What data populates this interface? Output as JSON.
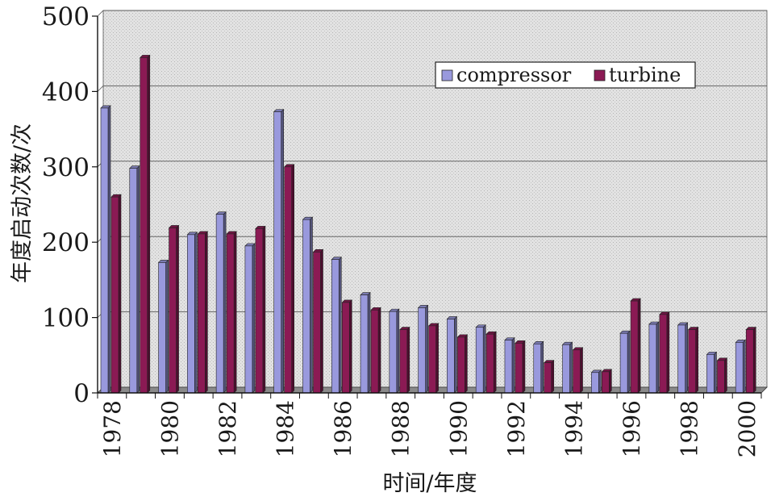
{
  "chart_data": {
    "type": "bar",
    "xlabel": "时间/年度",
    "ylabel": "年度启动次数/次",
    "ylim": [
      0,
      500
    ],
    "yticks": [
      0,
      100,
      200,
      300,
      400,
      500
    ],
    "grid": true,
    "legend_position": "top-right",
    "categories": [
      "1978",
      "1979",
      "1980",
      "1981",
      "1982",
      "1983",
      "1984",
      "1985",
      "1986",
      "1987",
      "1988",
      "1989",
      "1990",
      "1991",
      "1992",
      "1993",
      "1994",
      "1995",
      "1996",
      "1997",
      "1998",
      "1999",
      "2000"
    ],
    "xtick_labels": [
      "1978",
      "1980",
      "1982",
      "1984",
      "1986",
      "1988",
      "1990",
      "1992",
      "1994",
      "1996",
      "1998",
      "2000"
    ],
    "series": [
      {
        "name": "compressor",
        "color": "#9999dd",
        "values": [
          378,
          298,
          173,
          210,
          237,
          195,
          373,
          230,
          177,
          130,
          108,
          113,
          98,
          87,
          70,
          65,
          64,
          27,
          79,
          91,
          90,
          51,
          67
        ]
      },
      {
        "name": "turbine",
        "color": "#8b1a54",
        "values": [
          260,
          445,
          219,
          211,
          211,
          218,
          300,
          187,
          120,
          110,
          84,
          89,
          74,
          78,
          66,
          40,
          57,
          28,
          122,
          104,
          84,
          43,
          84
        ]
      }
    ]
  }
}
